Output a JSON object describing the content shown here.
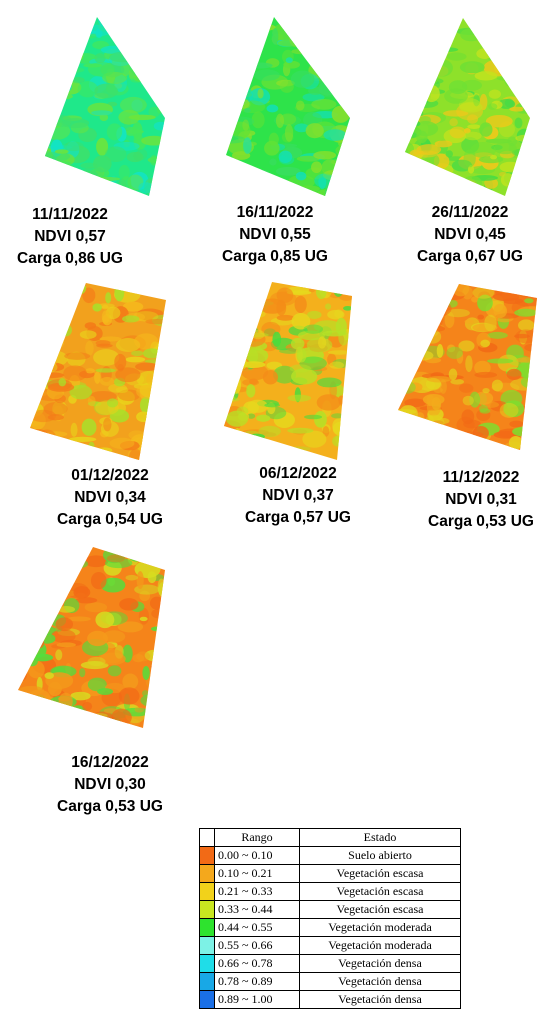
{
  "panels": [
    {
      "date": "11/11/2022",
      "ndvi": "NDVI 0,57",
      "load": "Carga 0,86 UG",
      "palette": [
        "#1fe88a",
        "#44e85a",
        "#6fe43a",
        "#12e3c8",
        "#3ee06a"
      ]
    },
    {
      "date": "16/11/2022",
      "ndvi": "NDVI 0,55",
      "load": "Carga 0,85 UG",
      "palette": [
        "#2ee34a",
        "#5fe236",
        "#12e0b8",
        "#86e02c",
        "#38de60"
      ]
    },
    {
      "date": "26/11/2022",
      "ndvi": "NDVI 0,45",
      "load": "Carga 0,67 UG",
      "palette": [
        "#8ee12a",
        "#c3e31e",
        "#3cdc48",
        "#f0c81a",
        "#6fe034"
      ]
    },
    {
      "date": "01/12/2022",
      "ndvi": "NDVI 0,34",
      "load": "Carga 0,54 UG",
      "palette": [
        "#f2a11d",
        "#e9d21b",
        "#f47a18",
        "#a8e02a",
        "#f5b81c"
      ]
    },
    {
      "date": "06/12/2022",
      "ndvi": "NDVI 0,37",
      "load": "Carga 0,57 UG",
      "palette": [
        "#f4b01c",
        "#e6d91d",
        "#48dc3e",
        "#f48c18",
        "#b6e126"
      ]
    },
    {
      "date": "11/12/2022",
      "ndvi": "NDVI 0,31",
      "load": "Carga 0,53 UG",
      "palette": [
        "#f5841a",
        "#f4a81c",
        "#f26a16",
        "#e4d41d",
        "#7ddf2e"
      ]
    },
    {
      "date": "16/12/2022",
      "ndvi": "NDVI 0,30",
      "load": "Carga 0,53 UG",
      "palette": [
        "#f5841a",
        "#f49a1b",
        "#f26a16",
        "#d8dc20",
        "#52de3c"
      ]
    }
  ],
  "legend": {
    "header_range": "Rango",
    "header_state": "Estado",
    "rows": [
      {
        "color": "#f26a16",
        "range": "0.00 ~ 0.10",
        "state": "Suelo abierto"
      },
      {
        "color": "#f4a81c",
        "range": "0.10 ~ 0.21",
        "state": "Vegetación escasa"
      },
      {
        "color": "#f2d21a",
        "range": "0.21 ~ 0.33",
        "state": "Vegetación escasa"
      },
      {
        "color": "#c8e620",
        "range": "0.33 ~ 0.44",
        "state": "Vegetación escasa"
      },
      {
        "color": "#2ee32e",
        "range": "0.44 ~ 0.55",
        "state": "Vegetación moderada"
      },
      {
        "color": "#7df2e6",
        "range": "0.55 ~ 0.66",
        "state": "Vegetación moderada"
      },
      {
        "color": "#1fdde8",
        "range": "0.66 ~ 0.78",
        "state": "Vegetación densa"
      },
      {
        "color": "#18a8e6",
        "range": "0.78 ~ 0.89",
        "state": "Vegetación densa"
      },
      {
        "color": "#1a6fe6",
        "range": "0.89 ~ 1.00",
        "state": "Vegetación densa"
      }
    ]
  }
}
